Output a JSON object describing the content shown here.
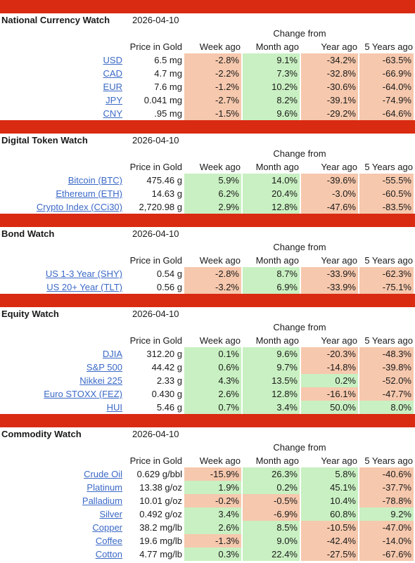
{
  "headers": {
    "change_from": "Change from",
    "price": "Price in Gold",
    "week": "Week ago",
    "month": "Month ago",
    "year": "Year ago",
    "five_years": "5 Years ago"
  },
  "colors": {
    "bar": "#d92a12",
    "negative": "#f6c8ad",
    "positive": "#c9f0c2",
    "link": "#3b69c7"
  },
  "sections": [
    {
      "title": "National Currency Watch",
      "date": "2026-04-10",
      "rows": [
        {
          "name": "USD",
          "price": "6.5 mg",
          "week": "-2.8%",
          "month": "9.1%",
          "year": "-34.2%",
          "five": "-63.5%"
        },
        {
          "name": "CAD",
          "price": "4.7 mg",
          "week": "-2.2%",
          "month": "7.3%",
          "year": "-32.8%",
          "five": "-66.9%"
        },
        {
          "name": "EUR",
          "price": "7.6 mg",
          "week": "-1.2%",
          "month": "10.2%",
          "year": "-30.6%",
          "five": "-64.0%"
        },
        {
          "name": "JPY",
          "price": "0.041 mg",
          "week": "-2.7%",
          "month": "8.2%",
          "year": "-39.1%",
          "five": "-74.9%"
        },
        {
          "name": "CNY",
          "price": ".95 mg",
          "week": "-1.5%",
          "month": "9.6%",
          "year": "-29.2%",
          "five": "-64.6%"
        }
      ]
    },
    {
      "title": "Digital Token Watch",
      "date": "2026-04-10",
      "rows": [
        {
          "name": "Bitcoin (BTC)",
          "price": "475.46 g",
          "week": "5.9%",
          "month": "14.0%",
          "year": "-39.6%",
          "five": "-55.5%"
        },
        {
          "name": "Ethereum (ETH)",
          "price": "14.63 g",
          "week": "6.2%",
          "month": "20.4%",
          "year": "-3.0%",
          "five": "-60.5%"
        },
        {
          "name": "Crypto Index (CCi30)",
          "price": "2,720.98 g",
          "week": "2.9%",
          "month": "12.8%",
          "year": "-47.6%",
          "five": "-83.5%"
        }
      ]
    },
    {
      "title": "Bond Watch",
      "date": "2026-04-10",
      "rows": [
        {
          "name": "US 1-3 Year (SHY)",
          "price": "0.54 g",
          "week": "-2.8%",
          "month": "8.7%",
          "year": "-33.9%",
          "five": "-62.3%"
        },
        {
          "name": "US 20+ Year (TLT)",
          "price": "0.56 g",
          "week": "-3.2%",
          "month": "6.9%",
          "year": "-33.9%",
          "five": "-75.1%"
        }
      ]
    },
    {
      "title": "Equity Watch",
      "date": "2026-04-10",
      "rows": [
        {
          "name": "DJIA",
          "price": "312.20 g",
          "week": "0.1%",
          "month": "9.6%",
          "year": "-20.3%",
          "five": "-48.3%"
        },
        {
          "name": "S&P 500",
          "price": "44.42 g",
          "week": "0.6%",
          "month": "9.7%",
          "year": "-14.8%",
          "five": "-39.8%"
        },
        {
          "name": "Nikkei 225",
          "price": "2.33 g",
          "week": "4.3%",
          "month": "13.5%",
          "year": "0.2%",
          "five": "-52.0%"
        },
        {
          "name": "Euro STOXX (FEZ)",
          "price": "0.430 g",
          "week": "2.6%",
          "month": "12.8%",
          "year": "-16.1%",
          "five": "-47.7%"
        },
        {
          "name": "HUI",
          "price": "5.46 g",
          "week": "0.7%",
          "month": "3.4%",
          "year": "50.0%",
          "five": "8.0%"
        }
      ]
    },
    {
      "title": "Commodity Watch",
      "date": "2026-04-10",
      "rows": [
        {
          "name": "Crude Oil",
          "price": "0.629 g/bbl",
          "week": "-15.9%",
          "month": "26.3%",
          "year": "5.8%",
          "five": "-40.6%"
        },
        {
          "name": "Platinum",
          "price": "13.38 g/oz",
          "week": "1.9%",
          "month": "0.2%",
          "year": "45.1%",
          "five": "-37.7%"
        },
        {
          "name": "Palladium",
          "price": "10.01 g/oz",
          "week": "-0.2%",
          "month": "-0.5%",
          "year": "10.4%",
          "five": "-78.8%"
        },
        {
          "name": "Silver",
          "price": "0.492 g/oz",
          "week": "3.4%",
          "month": "-6.9%",
          "year": "60.8%",
          "five": "9.2%"
        },
        {
          "name": "Copper",
          "price": "38.2 mg/lb",
          "week": "2.6%",
          "month": "8.5%",
          "year": "-10.5%",
          "five": "-47.0%"
        },
        {
          "name": "Coffee",
          "price": "19.6 mg/lb",
          "week": "-1.3%",
          "month": "9.0%",
          "year": "-42.4%",
          "five": "-14.0%"
        },
        {
          "name": "Cotton",
          "price": "4.77 mg/lb",
          "week": "0.3%",
          "month": "22.4%",
          "year": "-27.5%",
          "five": "-67.6%"
        }
      ]
    }
  ]
}
